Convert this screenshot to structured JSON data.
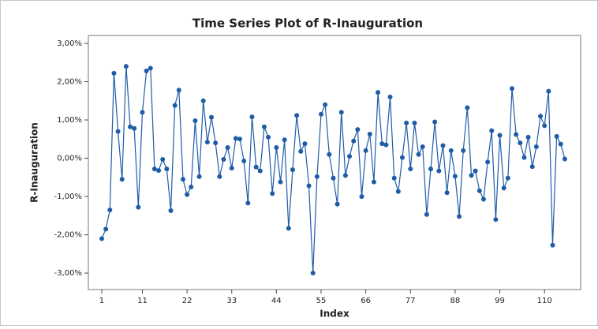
{
  "chart_data": {
    "type": "line",
    "title": "Time Series Plot of R-Inauguration",
    "x_label": "Index",
    "y_label": "R-Inauguration",
    "color": "#1f5ca8",
    "x": [
      1,
      2,
      3,
      4,
      5,
      6,
      7,
      8,
      9,
      10,
      11,
      12,
      13,
      14,
      15,
      16,
      17,
      18,
      19,
      20,
      21,
      22,
      23,
      24,
      25,
      26,
      27,
      28,
      29,
      30,
      31,
      32,
      33,
      34,
      35,
      36,
      37,
      38,
      39,
      40,
      41,
      42,
      43,
      44,
      45,
      46,
      47,
      48,
      49,
      50,
      51,
      52,
      53,
      54,
      55,
      56,
      57,
      58,
      59,
      60,
      61,
      62,
      63,
      64,
      65,
      66,
      67,
      68,
      69,
      70,
      71,
      72,
      73,
      74,
      75,
      76,
      77,
      78,
      79,
      80,
      81,
      82,
      83,
      84,
      85,
      86,
      87,
      88,
      89,
      90,
      91,
      92,
      93,
      94,
      95,
      96,
      97,
      98,
      99,
      100,
      101,
      102,
      103,
      104,
      105,
      106,
      107,
      108,
      109,
      110,
      111,
      112,
      113,
      114,
      115
    ],
    "values": [
      -2.1,
      -1.85,
      -1.35,
      2.22,
      0.7,
      -0.55,
      2.4,
      0.82,
      0.78,
      -1.28,
      1.2,
      2.28,
      2.35,
      -0.28,
      -0.32,
      -0.03,
      -0.28,
      -1.37,
      1.38,
      1.78,
      -0.55,
      -0.95,
      -0.75,
      0.98,
      -0.48,
      1.5,
      0.42,
      1.07,
      0.4,
      -0.48,
      -0.03,
      0.28,
      -0.26,
      0.52,
      0.5,
      -0.07,
      -1.17,
      1.08,
      -0.23,
      -0.33,
      0.82,
      0.55,
      -0.92,
      0.28,
      -0.62,
      0.48,
      -1.83,
      -0.3,
      1.12,
      0.18,
      0.38,
      -0.72,
      -3.0,
      -0.48,
      1.15,
      1.4,
      0.1,
      -0.52,
      -1.2,
      1.2,
      -0.45,
      0.05,
      0.45,
      0.75,
      -1.0,
      0.2,
      0.63,
      -0.62,
      1.72,
      0.38,
      0.35,
      1.6,
      -0.52,
      -0.87,
      0.02,
      0.92,
      -0.28,
      0.92,
      0.1,
      0.3,
      -1.47,
      -0.28,
      0.95,
      -0.33,
      0.33,
      -0.9,
      0.2,
      -0.47,
      -1.52,
      0.2,
      1.32,
      -0.45,
      -0.33,
      -0.85,
      -1.07,
      -0.1,
      0.72,
      -1.6,
      0.6,
      -0.78,
      -0.52,
      1.82,
      0.62,
      0.4,
      0.02,
      0.55,
      -0.22,
      0.3,
      1.1,
      0.85,
      1.75,
      -2.27,
      0.57,
      0.37,
      -0.02
    ],
    "xlim": [
      -2.3,
      118.9
    ],
    "xticks": [
      1,
      11,
      22,
      33,
      44,
      55,
      66,
      77,
      88,
      99,
      110
    ],
    "ylim": [
      -3.43,
      3.206
    ],
    "yticks": [
      {
        "value": -3,
        "label": "-3,00%"
      },
      {
        "value": -2,
        "label": "-2,00%"
      },
      {
        "value": -1,
        "label": "-1,00%"
      },
      {
        "value": 0,
        "label": "0,00%"
      },
      {
        "value": 1,
        "label": "1,00%"
      },
      {
        "value": 2,
        "label": "2,00%"
      },
      {
        "value": 3,
        "label": "3,00%"
      }
    ]
  }
}
